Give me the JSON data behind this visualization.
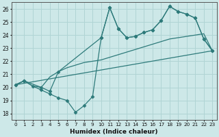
{
  "bg_color": "#cde8e8",
  "grid_color": "#b0d4d4",
  "line_color": "#2d7a7a",
  "marker_style": "D",
  "marker_size": 2.5,
  "line_width": 0.9,
  "xlabel": "Humidex (Indice chaleur)",
  "xlim": [
    -0.5,
    23.5
  ],
  "ylim": [
    17.5,
    26.5
  ],
  "xticks": [
    0,
    1,
    2,
    3,
    4,
    5,
    6,
    7,
    8,
    9,
    10,
    11,
    12,
    13,
    14,
    15,
    16,
    17,
    18,
    19,
    20,
    21,
    22,
    23
  ],
  "yticks": [
    18,
    19,
    20,
    21,
    22,
    23,
    24,
    25,
    26
  ],
  "line1_x": [
    0,
    1,
    2,
    3,
    4,
    5,
    6,
    7,
    8,
    9,
    10,
    11,
    12,
    13,
    14,
    15,
    16,
    17,
    18,
    19,
    20,
    21,
    22,
    23
  ],
  "line1_y": [
    20.2,
    20.5,
    20.1,
    19.8,
    19.5,
    19.2,
    19.0,
    18.1,
    18.6,
    19.3,
    23.8,
    26.1,
    24.5,
    23.8,
    23.9,
    24.2,
    24.4,
    25.1,
    26.2,
    25.8,
    25.6,
    25.3,
    23.7,
    22.8
  ],
  "line2_x": [
    0,
    23
  ],
  "line2_y": [
    20.2,
    22.8
  ],
  "line3_x": [
    0,
    1,
    2,
    3,
    4,
    5,
    6,
    7,
    8,
    9,
    10,
    11,
    12,
    13,
    14,
    15,
    16,
    17,
    18,
    19,
    20,
    21,
    22,
    23
  ],
  "line3_y": [
    20.2,
    20.5,
    20.1,
    20.0,
    20.8,
    21.2,
    21.5,
    21.7,
    21.9,
    22.0,
    22.1,
    22.3,
    22.5,
    22.7,
    22.9,
    23.1,
    23.3,
    23.5,
    23.7,
    23.8,
    23.9,
    24.0,
    24.1,
    22.8
  ],
  "line4_x": [
    0,
    1,
    3,
    4,
    5,
    10,
    11,
    12,
    13,
    14,
    15,
    16,
    17,
    18,
    19,
    20,
    21,
    22,
    23
  ],
  "line4_y": [
    20.2,
    20.5,
    20.0,
    19.7,
    21.2,
    23.8,
    26.1,
    24.5,
    23.8,
    23.9,
    24.2,
    24.4,
    25.1,
    26.2,
    25.8,
    25.6,
    25.3,
    23.7,
    22.8
  ]
}
